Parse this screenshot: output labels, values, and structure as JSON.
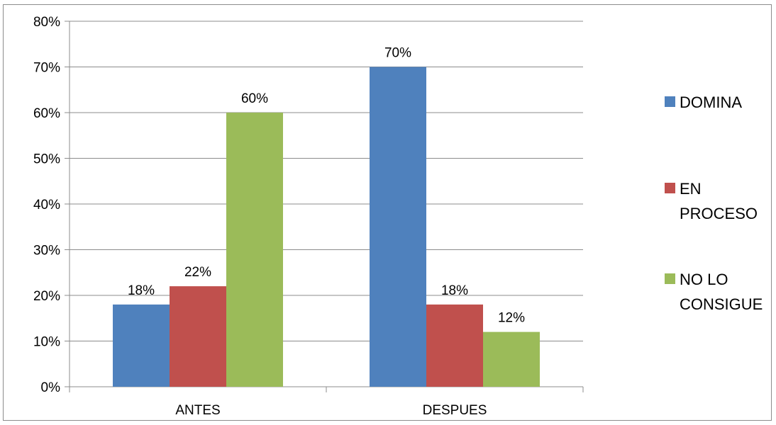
{
  "chart_data": {
    "type": "bar",
    "title": "",
    "xlabel": "",
    "ylabel": "",
    "categories": [
      "ANTES",
      "DESPUES"
    ],
    "series": [
      {
        "name": "DOMINA",
        "values": [
          18,
          70
        ],
        "labels": [
          "18%",
          "70%"
        ],
        "color": "#4f81bd"
      },
      {
        "name": "EN PROCESO",
        "values": [
          22,
          18
        ],
        "labels": [
          "22%",
          "18%"
        ],
        "color": "#c0504d"
      },
      {
        "name": "NO LO CONSIGUE",
        "values": [
          60,
          12
        ],
        "labels": [
          "60%",
          "12%"
        ],
        "color": "#9bbb59"
      }
    ],
    "ylim": [
      0,
      80
    ],
    "yticks": [
      0,
      10,
      20,
      30,
      40,
      50,
      60,
      70,
      80
    ],
    "ytick_labels": [
      "0%",
      "10%",
      "20%",
      "30%",
      "40%",
      "50%",
      "60%",
      "70%",
      "80%"
    ],
    "grid": true,
    "legend_position": "right",
    "legend_lines": [
      [
        "DOMINA"
      ],
      [
        "EN",
        "PROCESO"
      ],
      [
        "NO LO",
        "CONSIGUE"
      ]
    ]
  }
}
